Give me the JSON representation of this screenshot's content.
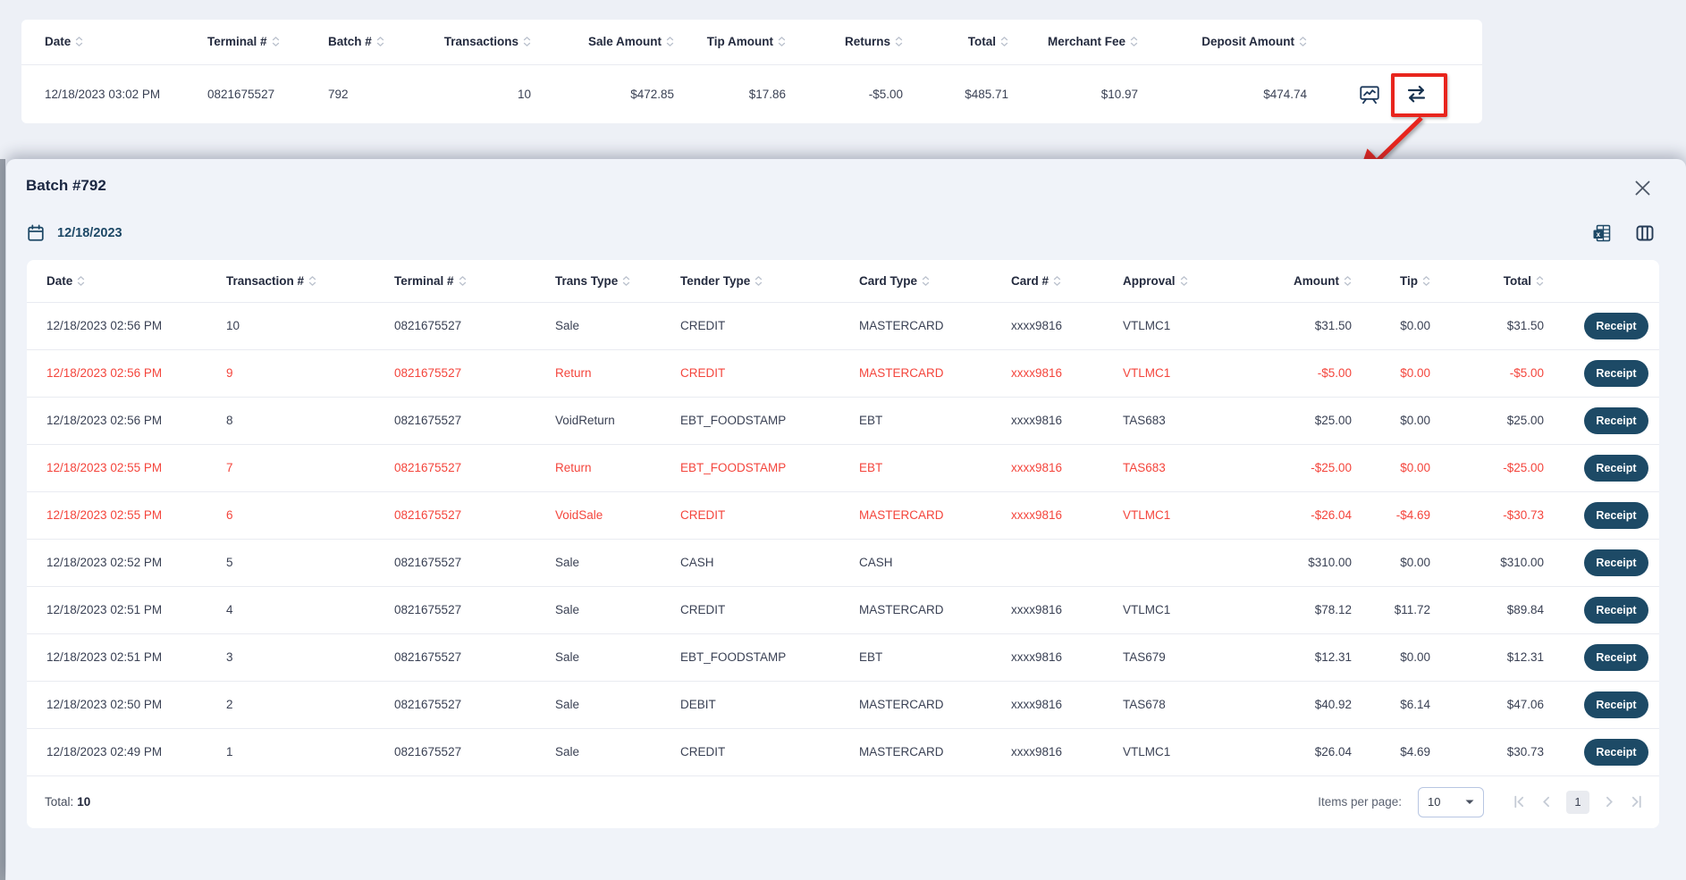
{
  "colors": {
    "page_bg": "#edf0f6",
    "panel_bg": "#f0f3f9",
    "card_bg": "#ffffff",
    "header_text": "#232a3e",
    "body_text": "#3a4154",
    "muted_text": "#5a6170",
    "navy": "#1d4866",
    "receipt_button_bg": "#1d4a66",
    "receipt_button_text": "#ffffff",
    "negative_red": "#f4453c",
    "annotation_red": "#e8251d",
    "divider": "#e9ebf1",
    "sort_icon": "#b9c0cc",
    "pagination_icon": "#c5cbd5",
    "page_box_bg": "#e9ebf0"
  },
  "summary_table": {
    "columns": [
      {
        "key": "date",
        "label": "Date",
        "align": "left"
      },
      {
        "key": "terminal",
        "label": "Terminal #",
        "align": "left"
      },
      {
        "key": "batch",
        "label": "Batch #",
        "align": "left"
      },
      {
        "key": "transactions",
        "label": "Transactions",
        "align": "right"
      },
      {
        "key": "sale_amount",
        "label": "Sale Amount",
        "align": "right"
      },
      {
        "key": "tip_amount",
        "label": "Tip Amount",
        "align": "right"
      },
      {
        "key": "returns",
        "label": "Returns",
        "align": "right"
      },
      {
        "key": "total",
        "label": "Total",
        "align": "right"
      },
      {
        "key": "merchant_fee",
        "label": "Merchant Fee",
        "align": "right"
      },
      {
        "key": "deposit_amount",
        "label": "Deposit Amount",
        "align": "right"
      }
    ],
    "row": {
      "date": "12/18/2023 03:02 PM",
      "terminal": "0821675527",
      "batch": "792",
      "transactions": "10",
      "sale_amount": "$472.85",
      "tip_amount": "$17.86",
      "returns": "-$5.00",
      "total": "$485.71",
      "merchant_fee": "$10.97",
      "deposit_amount": "$474.74"
    },
    "row_icons": [
      "chart-report-icon",
      "swap-transactions-icon"
    ]
  },
  "annotations": {
    "highlight": "red-box-around-swap-transactions-icon",
    "arrow": "red-arrow-pointing-to-batch-panel"
  },
  "modal": {
    "title": "Batch #792",
    "date": "12/18/2023",
    "toolbar_icons": [
      "calendar-icon",
      "excel-export-icon",
      "columns-icon"
    ],
    "table": {
      "columns": [
        {
          "key": "date",
          "label": "Date",
          "align": "left"
        },
        {
          "key": "txn",
          "label": "Transaction #",
          "align": "left"
        },
        {
          "key": "terminal",
          "label": "Terminal #",
          "align": "left"
        },
        {
          "key": "trans_type",
          "label": "Trans Type",
          "align": "left"
        },
        {
          "key": "tender_type",
          "label": "Tender Type",
          "align": "left"
        },
        {
          "key": "card_type",
          "label": "Card Type",
          "align": "left"
        },
        {
          "key": "card_num",
          "label": "Card #",
          "align": "left"
        },
        {
          "key": "approval",
          "label": "Approval",
          "align": "left"
        },
        {
          "key": "amount",
          "label": "Amount",
          "align": "right"
        },
        {
          "key": "tip",
          "label": "Tip",
          "align": "right"
        },
        {
          "key": "total",
          "label": "Total",
          "align": "right"
        }
      ],
      "receipt_label": "Receipt",
      "rows": [
        {
          "date": "12/18/2023 02:56 PM",
          "txn": "10",
          "terminal": "0821675527",
          "trans_type": "Sale",
          "tender_type": "CREDIT",
          "card_type": "MASTERCARD",
          "card_num": "xxxx9816",
          "approval": "VTLMC1",
          "amount": "$31.50",
          "tip": "$0.00",
          "total": "$31.50",
          "negative": false
        },
        {
          "date": "12/18/2023 02:56 PM",
          "txn": "9",
          "terminal": "0821675527",
          "trans_type": "Return",
          "tender_type": "CREDIT",
          "card_type": "MASTERCARD",
          "card_num": "xxxx9816",
          "approval": "VTLMC1",
          "amount": "-$5.00",
          "tip": "$0.00",
          "total": "-$5.00",
          "negative": true
        },
        {
          "date": "12/18/2023 02:56 PM",
          "txn": "8",
          "terminal": "0821675527",
          "trans_type": "VoidReturn",
          "tender_type": "EBT_FOODSTAMP",
          "card_type": "EBT",
          "card_num": "xxxx9816",
          "approval": "TAS683",
          "amount": "$25.00",
          "tip": "$0.00",
          "total": "$25.00",
          "negative": false
        },
        {
          "date": "12/18/2023 02:55 PM",
          "txn": "7",
          "terminal": "0821675527",
          "trans_type": "Return",
          "tender_type": "EBT_FOODSTAMP",
          "card_type": "EBT",
          "card_num": "xxxx9816",
          "approval": "TAS683",
          "amount": "-$25.00",
          "tip": "$0.00",
          "total": "-$25.00",
          "negative": true
        },
        {
          "date": "12/18/2023 02:55 PM",
          "txn": "6",
          "terminal": "0821675527",
          "trans_type": "VoidSale",
          "tender_type": "CREDIT",
          "card_type": "MASTERCARD",
          "card_num": "xxxx9816",
          "approval": "VTLMC1",
          "amount": "-$26.04",
          "tip": "-$4.69",
          "total": "-$30.73",
          "negative": true
        },
        {
          "date": "12/18/2023 02:52 PM",
          "txn": "5",
          "terminal": "0821675527",
          "trans_type": "Sale",
          "tender_type": "CASH",
          "card_type": "CASH",
          "card_num": "",
          "approval": "",
          "amount": "$310.00",
          "tip": "$0.00",
          "total": "$310.00",
          "negative": false
        },
        {
          "date": "12/18/2023 02:51 PM",
          "txn": "4",
          "terminal": "0821675527",
          "trans_type": "Sale",
          "tender_type": "CREDIT",
          "card_type": "MASTERCARD",
          "card_num": "xxxx9816",
          "approval": "VTLMC1",
          "amount": "$78.12",
          "tip": "$11.72",
          "total": "$89.84",
          "negative": false
        },
        {
          "date": "12/18/2023 02:51 PM",
          "txn": "3",
          "terminal": "0821675527",
          "trans_type": "Sale",
          "tender_type": "EBT_FOODSTAMP",
          "card_type": "EBT",
          "card_num": "xxxx9816",
          "approval": "TAS679",
          "amount": "$12.31",
          "tip": "$0.00",
          "total": "$12.31",
          "negative": false
        },
        {
          "date": "12/18/2023 02:50 PM",
          "txn": "2",
          "terminal": "0821675527",
          "trans_type": "Sale",
          "tender_type": "DEBIT",
          "card_type": "MASTERCARD",
          "card_num": "xxxx9816",
          "approval": "TAS678",
          "amount": "$40.92",
          "tip": "$6.14",
          "total": "$47.06",
          "negative": false
        },
        {
          "date": "12/18/2023 02:49 PM",
          "txn": "1",
          "terminal": "0821675527",
          "trans_type": "Sale",
          "tender_type": "CREDIT",
          "card_type": "MASTERCARD",
          "card_num": "xxxx9816",
          "approval": "VTLMC1",
          "amount": "$26.04",
          "tip": "$4.69",
          "total": "$30.73",
          "negative": false
        }
      ]
    },
    "footer": {
      "total_label": "Total:",
      "total_value": "10",
      "items_per_page_label": "Items per page:",
      "items_per_page_value": "10",
      "current_page": "1"
    }
  }
}
